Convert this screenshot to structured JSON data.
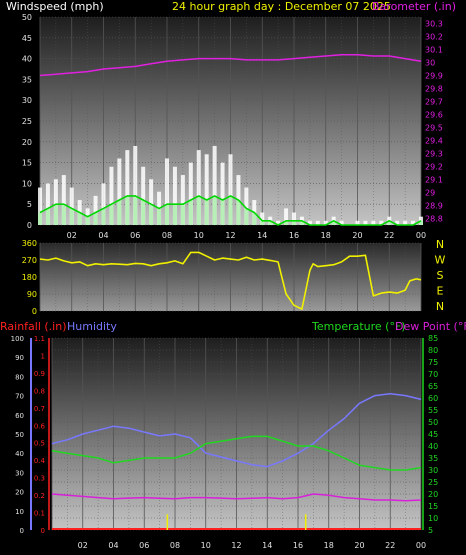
{
  "header": {
    "wind_title": "Windspeed (mph)",
    "date_title": "24 hour graph day : December 07 2025",
    "baro_title": "Barometer (.in)"
  },
  "colors": {
    "background": "#000000",
    "panel_top": "#202020",
    "panel_bottom": "#bdbdbd",
    "wind_gust": "#ffffff",
    "wind_avg": "#00d800",
    "wind_fill": "#b7f0b7",
    "barometer": "#e020e0",
    "direction": "#f0f000",
    "rainfall": "#ff2020",
    "rain_bars": "#f0f000",
    "humidity": "#7878ff",
    "temperature": "#20d820",
    "dewpoint": "#d820d8",
    "temp_axis": "#20d820",
    "axis_text": "#e0e0e0"
  },
  "chart_data": [
    {
      "type": "line",
      "id": "wind-baro",
      "xlabel": "",
      "x_ticks": [
        "02",
        "04",
        "06",
        "08",
        "10",
        "12",
        "14",
        "16",
        "18",
        "20",
        "22",
        "00"
      ],
      "y_left_label": "Windspeed (mph)",
      "y_left_ticks": [
        "0",
        "5",
        "10",
        "15",
        "20",
        "25",
        "30",
        "35",
        "40",
        "45",
        "50"
      ],
      "ylim_left": [
        0,
        50
      ],
      "y_right_label": "Barometer (.in)",
      "y_right_ticks": [
        "28.8",
        "28.9",
        "29",
        "29.1",
        "29.2",
        "29.3",
        "29.4",
        "29.5",
        "29.6",
        "29.7",
        "29.8",
        "29.9",
        "30",
        "30.1",
        "30.2",
        "30.3"
      ],
      "ylim_right": [
        28.75,
        30.35
      ],
      "grid": true,
      "series": [
        {
          "name": "Windspeed",
          "axis": "left",
          "style": "gust",
          "x": [
            0,
            0.5,
            1,
            1.5,
            2,
            2.5,
            3,
            3.5,
            4,
            4.5,
            5,
            5.5,
            6,
            6.5,
            7,
            7.5,
            8,
            8.5,
            9,
            9.5,
            10,
            10.5,
            11,
            11.5,
            12,
            12.5,
            13,
            13.5,
            14,
            14.5,
            15,
            15.5,
            16,
            16.5,
            17,
            17.5,
            18,
            18.5,
            19,
            19.5,
            20,
            20.5,
            21,
            21.5,
            22,
            22.5,
            23,
            23.5,
            24
          ],
          "y": [
            9,
            10,
            11,
            12,
            9,
            6,
            4,
            7,
            10,
            14,
            16,
            18,
            19,
            14,
            11,
            8,
            16,
            14,
            12,
            15,
            18,
            17,
            19,
            15,
            17,
            12,
            9,
            6,
            3,
            2,
            1,
            4,
            3,
            2,
            1,
            1,
            1,
            2,
            1,
            0,
            1,
            1,
            1,
            1,
            2,
            1,
            1,
            1,
            2
          ]
        },
        {
          "name": "Average",
          "axis": "left",
          "style": "avg",
          "x": [
            0,
            0.5,
            1,
            1.5,
            2,
            2.5,
            3,
            3.5,
            4,
            4.5,
            5,
            5.5,
            6,
            6.5,
            7,
            7.5,
            8,
            8.5,
            9,
            9.5,
            10,
            10.5,
            11,
            11.5,
            12,
            12.5,
            13,
            13.5,
            14,
            14.5,
            15,
            15.5,
            16,
            16.5,
            17,
            17.5,
            18,
            18.5,
            19,
            19.5,
            20,
            20.5,
            21,
            21.5,
            22,
            22.5,
            23,
            23.5,
            24
          ],
          "y": [
            3,
            4,
            5,
            5,
            4,
            3,
            2,
            3,
            4,
            5,
            6,
            7,
            7,
            6,
            5,
            4,
            5,
            5,
            5,
            6,
            7,
            6,
            7,
            6,
            7,
            6,
            4,
            3,
            1,
            1,
            0,
            1,
            1,
            1,
            0,
            0,
            0,
            1,
            0,
            0,
            0,
            0,
            0,
            0,
            1,
            0,
            0,
            0,
            1
          ]
        },
        {
          "name": "Barometer",
          "axis": "right",
          "style": "baro",
          "x": [
            0,
            1,
            2,
            3,
            4,
            5,
            6,
            7,
            8,
            9,
            10,
            11,
            12,
            13,
            14,
            15,
            16,
            17,
            18,
            19,
            20,
            21,
            22,
            23,
            24
          ],
          "y": [
            29.9,
            29.91,
            29.92,
            29.93,
            29.95,
            29.96,
            29.97,
            29.99,
            30.01,
            30.02,
            30.03,
            30.03,
            30.03,
            30.02,
            30.02,
            30.02,
            30.03,
            30.04,
            30.05,
            30.06,
            30.06,
            30.05,
            30.05,
            30.03,
            30.01
          ]
        }
      ]
    },
    {
      "type": "line",
      "id": "wind-direction",
      "x_ticks": [
        "02",
        "04",
        "06",
        "08",
        "10",
        "12",
        "14",
        "16",
        "18",
        "20",
        "22",
        "00"
      ],
      "y_ticks": [
        "0",
        "90",
        "180",
        "270",
        "360"
      ],
      "ylim": [
        0,
        360
      ],
      "right_labels": [
        "N",
        "W",
        "S",
        "E",
        "N"
      ],
      "grid": true,
      "series": [
        {
          "name": "Direction",
          "x": [
            0,
            0.5,
            1,
            1.5,
            2,
            2.5,
            3,
            3.5,
            4,
            4.5,
            5,
            5.5,
            6,
            6.5,
            7,
            7.5,
            8,
            8.5,
            9,
            9.5,
            10,
            10.5,
            11,
            11.5,
            12,
            12.5,
            13,
            13.5,
            14,
            14.5,
            15,
            15.2,
            15.5,
            16,
            16.5,
            17,
            17.2,
            17.5,
            18,
            18.5,
            19,
            19.5,
            20,
            20.5,
            21,
            21.5,
            22,
            22.5,
            23,
            23.3,
            23.7,
            24
          ],
          "y": [
            275,
            270,
            280,
            265,
            255,
            260,
            240,
            250,
            245,
            250,
            248,
            245,
            252,
            250,
            240,
            250,
            255,
            265,
            250,
            310,
            310,
            290,
            270,
            280,
            275,
            270,
            285,
            270,
            275,
            268,
            260,
            190,
            90,
            30,
            10,
            215,
            250,
            235,
            240,
            245,
            260,
            290,
            290,
            295,
            80,
            95,
            100,
            95,
            110,
            160,
            170,
            165
          ]
        }
      ]
    },
    {
      "type": "line",
      "id": "humidity-temp",
      "x_ticks": [
        "02",
        "04",
        "06",
        "08",
        "10",
        "12",
        "14",
        "16",
        "18",
        "20",
        "22",
        "00"
      ],
      "rain_label": "Rainfall (.in)",
      "humidity_label": "Humidity",
      "temp_label": "Temperature (°F)",
      "dew_label": "Dew Point (°F)",
      "y_humidity_ticks": [
        "0",
        "10",
        "20",
        "30",
        "40",
        "50",
        "60",
        "70",
        "80",
        "90",
        "100"
      ],
      "ylim_humidity": [
        0,
        100
      ],
      "y_rain_ticks": [
        "0",
        "0.1",
        "0.2",
        "0.3",
        "0.4",
        "0.5",
        "0.6",
        "0.7",
        "0.8",
        "0.9",
        "1",
        "1.1"
      ],
      "ylim_rain": [
        0,
        1.1
      ],
      "y_temp_ticks": [
        "5",
        "10",
        "15",
        "20",
        "25",
        "30",
        "35",
        "40",
        "45",
        "50",
        "55",
        "60",
        "65",
        "70",
        "75",
        "80",
        "85"
      ],
      "ylim_temp": [
        5,
        85
      ],
      "grid": true,
      "series": [
        {
          "name": "Humidity",
          "axis": "humidity",
          "x": [
            0,
            1,
            2,
            3,
            4,
            5,
            6,
            7,
            8,
            9,
            10,
            11,
            12,
            13,
            14,
            15,
            16,
            17,
            18,
            19,
            20,
            21,
            22,
            23,
            24
          ],
          "y": [
            45,
            47,
            50,
            52,
            54,
            53,
            51,
            49,
            50,
            48,
            40,
            38,
            36,
            34,
            33,
            36,
            40,
            45,
            52,
            58,
            66,
            70,
            71,
            70,
            68
          ]
        },
        {
          "name": "Temperature",
          "axis": "temp",
          "x": [
            0,
            1,
            2,
            3,
            4,
            5,
            6,
            7,
            8,
            9,
            10,
            11,
            12,
            13,
            14,
            15,
            16,
            17,
            18,
            19,
            20,
            21,
            22,
            23,
            24
          ],
          "y": [
            38,
            37,
            36,
            35,
            33,
            34,
            35,
            35,
            35,
            37,
            41,
            42,
            43,
            44,
            44,
            42,
            40,
            40,
            38,
            35,
            32,
            31,
            30,
            30,
            31
          ]
        },
        {
          "name": "Dew Point",
          "axis": "temp",
          "x": [
            0,
            1,
            2,
            3,
            4,
            5,
            6,
            7,
            8,
            9,
            10,
            11,
            12,
            13,
            14,
            15,
            16,
            17,
            18,
            19,
            20,
            21,
            22,
            23,
            24
          ],
          "y": [
            20,
            19.5,
            19,
            18.5,
            18,
            18.3,
            18.5,
            18.2,
            18,
            18.5,
            18.5,
            18.3,
            18,
            18.2,
            18.5,
            18,
            18.5,
            20,
            19.5,
            18.5,
            18,
            17.5,
            17.5,
            17.2,
            17.5
          ]
        },
        {
          "name": "Rainfall",
          "axis": "rain",
          "x": [
            7.5,
            16.5
          ],
          "y": [
            0.09,
            0.09
          ]
        }
      ]
    }
  ]
}
